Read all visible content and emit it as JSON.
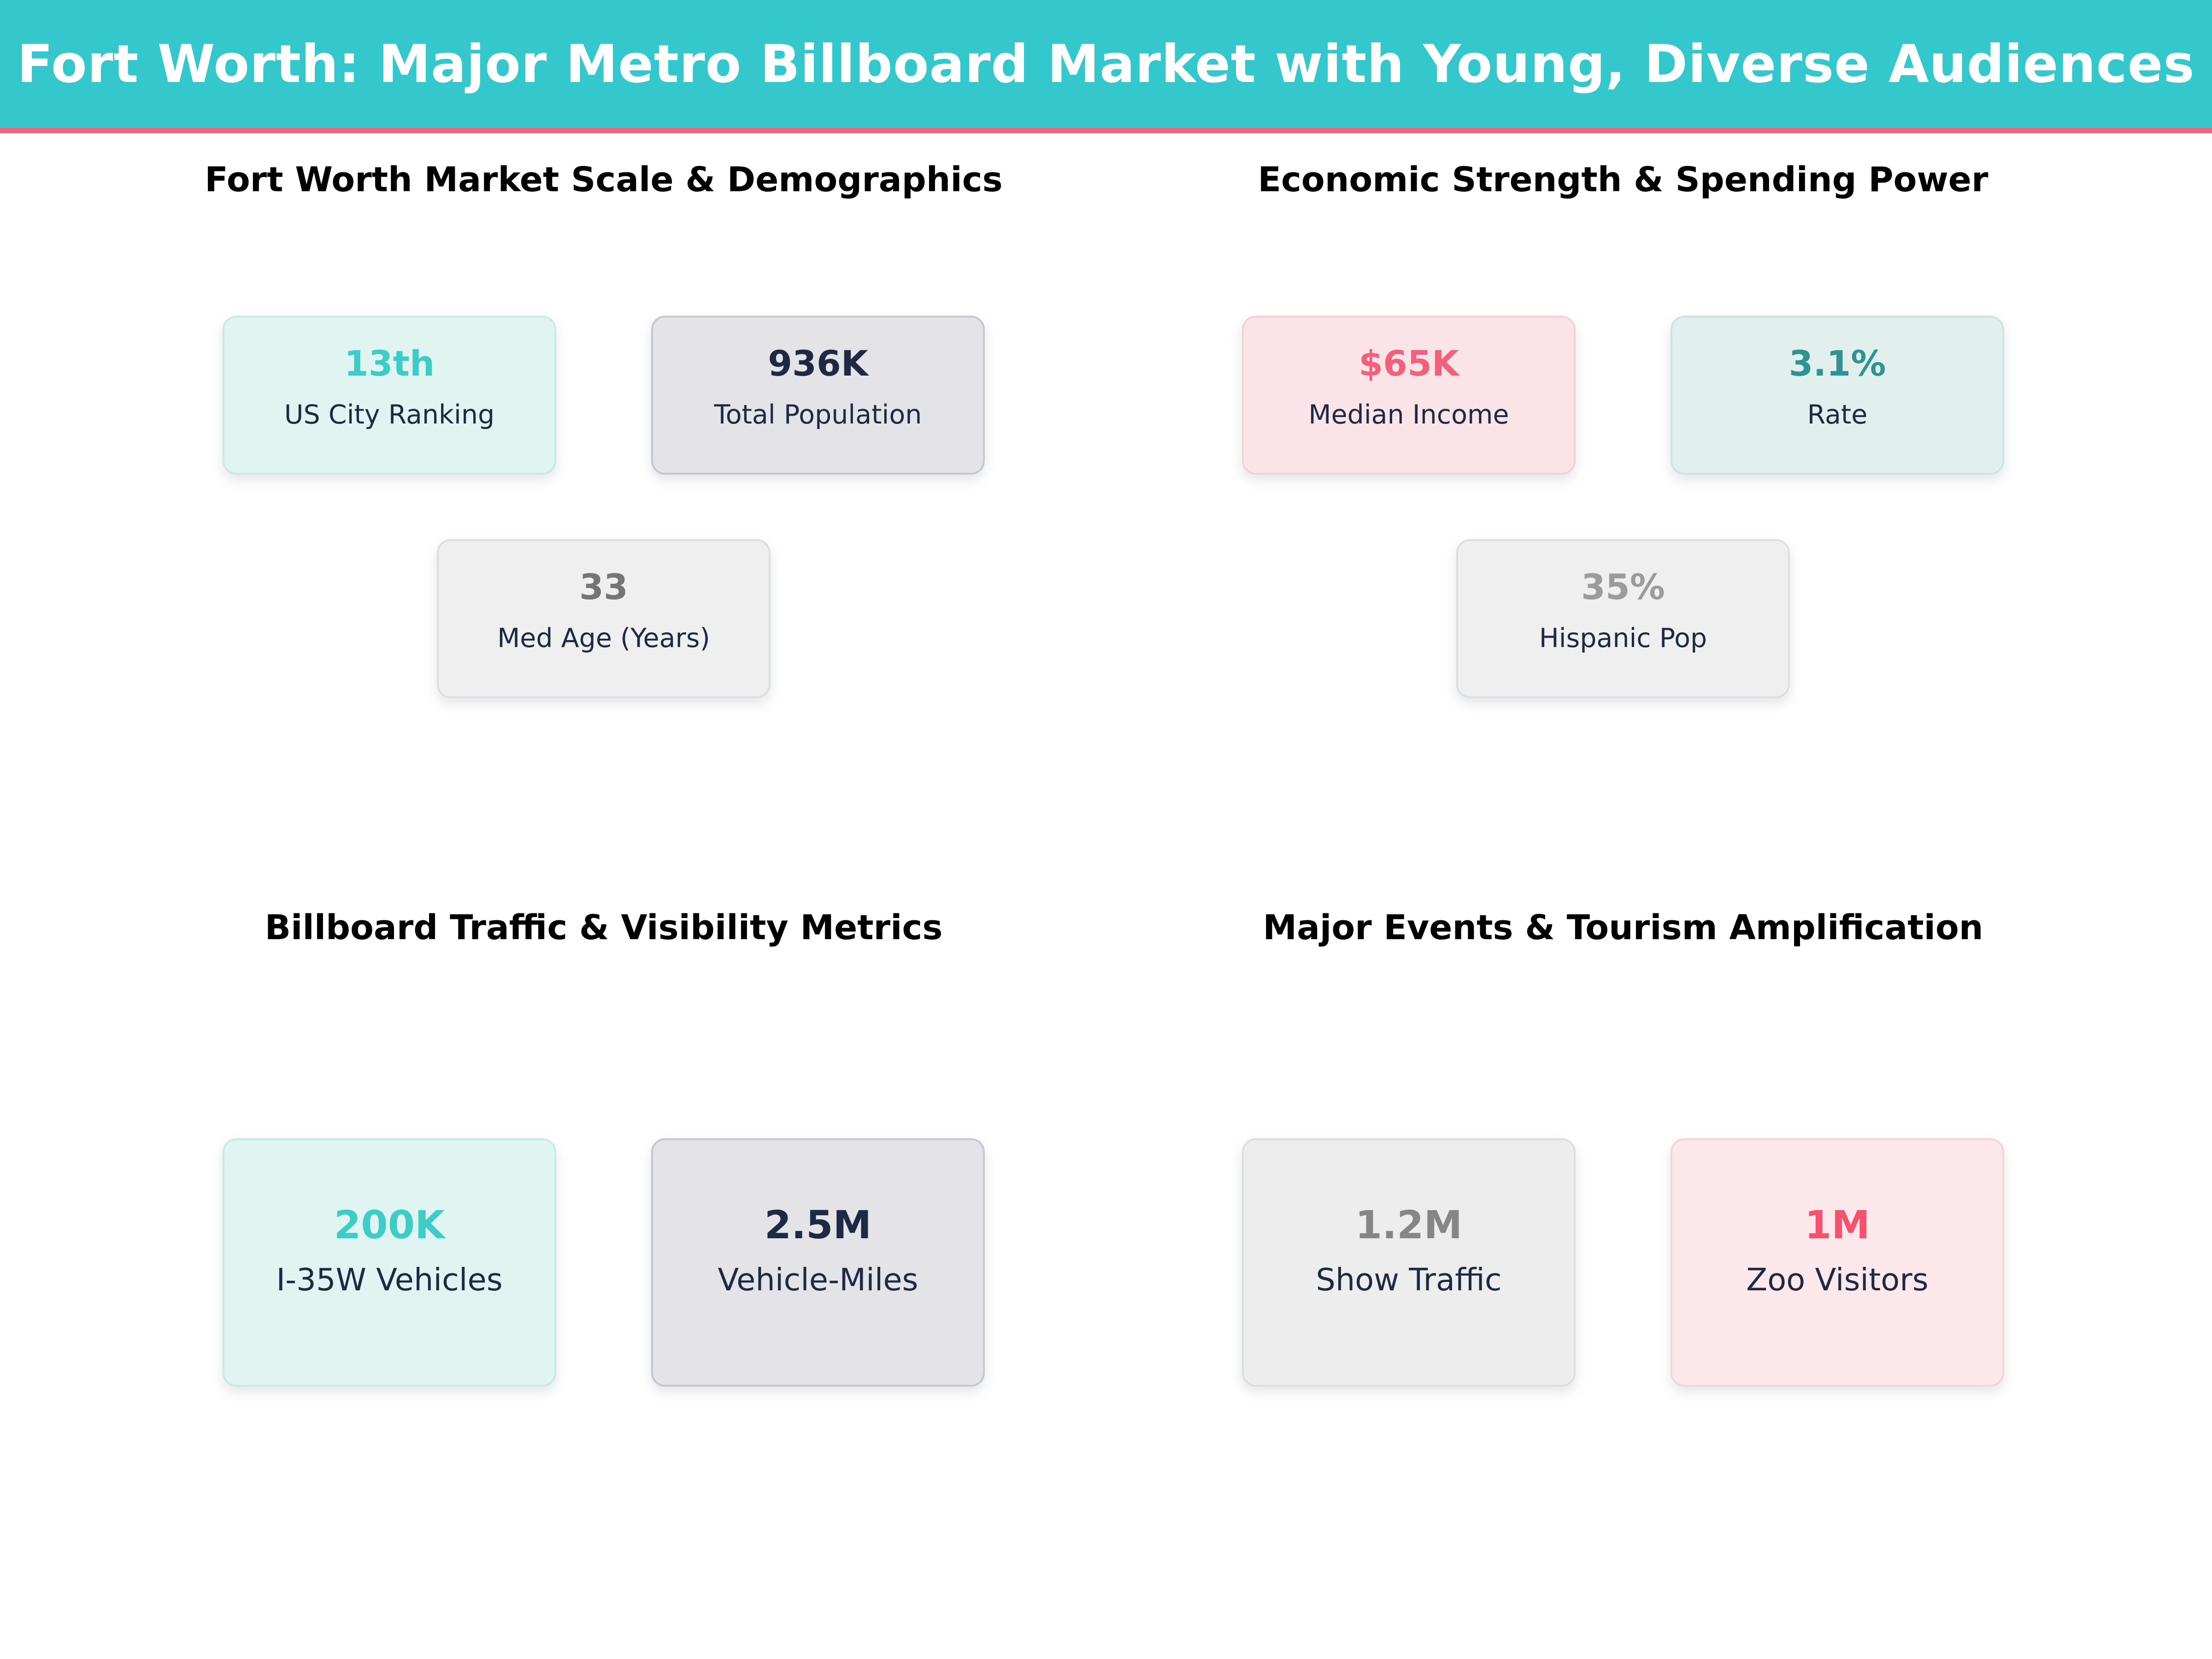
{
  "header": {
    "title": "Fort Worth: Major Metro Billboard Market with Young, Diverse Audiences",
    "bg": "#34C8CD",
    "text_color": "#FFFFFF",
    "accent_bar_color": "#F0637A"
  },
  "colors": {
    "page_bg": "#FFFFFF",
    "section_title": "#000000",
    "label_navy": "#1E2A44",
    "accent_teal": "#3ECDC6",
    "accent_rose": "#F2617B"
  },
  "sections": [
    {
      "title": "Fort Worth Market Scale & Demographics",
      "cards": [
        {
          "value": "13th",
          "label": "US City Ranking",
          "bg": "#E0F4F2",
          "border": "#C8E9E5",
          "value_color": "#3ECDC6",
          "label_color": "#1E2A44"
        },
        {
          "value": "936K",
          "label": "Total Population",
          "bg": "#E3E3E8",
          "border": "#C6C6CF",
          "value_color": "#1E2A44",
          "label_color": "#1E2A44"
        },
        {
          "value": "33",
          "label": "Med Age (Years)",
          "bg": "#EFEFEF",
          "border": "#DEDEDE",
          "value_color": "#757575",
          "label_color": "#1E2A44"
        }
      ]
    },
    {
      "title": "Economic Strength & Spending Power",
      "cards": [
        {
          "value": "$65K",
          "label": "Median Income",
          "bg": "#FBE4E7",
          "border": "#F4D0D7",
          "value_color": "#F2617B",
          "label_color": "#1E2A44"
        },
        {
          "value": "3.1%",
          "label": "Rate",
          "bg": "#E2F0ED",
          "border": "#CBE5E0",
          "value_color": "#2F9394",
          "label_color": "#1E2A44"
        },
        {
          "value": "35%",
          "label": "Hispanic Pop",
          "bg": "#EFEFEF",
          "border": "#DEDEDE",
          "value_color": "#9B9B9B",
          "label_color": "#1E2A44"
        }
      ]
    },
    {
      "title": "Billboard Traffic & Visibility Metrics",
      "cards": [
        {
          "value": "200K",
          "label": "I-35W Vehicles",
          "bg": "#E0F4F2",
          "border": "#C8E9E5",
          "value_color": "#3ECDC6",
          "label_color": "#1E2A44"
        },
        {
          "value": "2.5M",
          "label": "Vehicle-Miles",
          "bg": "#E3E3E8",
          "border": "#C6C6CF",
          "value_color": "#1E2A44",
          "label_color": "#1E2A44"
        }
      ]
    },
    {
      "title": "Major Events & Tourism Amplification",
      "cards": [
        {
          "value": "1.2M",
          "label": "Show Traffic",
          "bg": "#EDEDED",
          "border": "#DEDEDE",
          "value_color": "#868686",
          "label_color": "#1E2A44"
        },
        {
          "value": "1M",
          "label": "Zoo Visitors",
          "bg": "#FCE7EA",
          "border": "#F6D3D9",
          "value_color": "#F2536F",
          "label_color": "#1E2A44"
        }
      ]
    }
  ],
  "chart_data": [
    {
      "type": "table",
      "title": "Fort Worth Market Scale & Demographics",
      "categories": [
        "US City Ranking",
        "Total Population",
        "Med Age (Years)"
      ],
      "values": [
        "13th",
        "936K",
        "33"
      ]
    },
    {
      "type": "table",
      "title": "Economic Strength & Spending Power",
      "categories": [
        "Median Income",
        "Rate",
        "Hispanic Pop"
      ],
      "values": [
        "$65K",
        "3.1%",
        "35%"
      ]
    },
    {
      "type": "table",
      "title": "Billboard Traffic & Visibility Metrics",
      "categories": [
        "I-35W Vehicles",
        "Vehicle-Miles"
      ],
      "values": [
        "200K",
        "2.5M"
      ]
    },
    {
      "type": "table",
      "title": "Major Events & Tourism Amplification",
      "categories": [
        "Show Traffic",
        "Zoo Visitors"
      ],
      "values": [
        "1.2M",
        "1M"
      ]
    }
  ]
}
